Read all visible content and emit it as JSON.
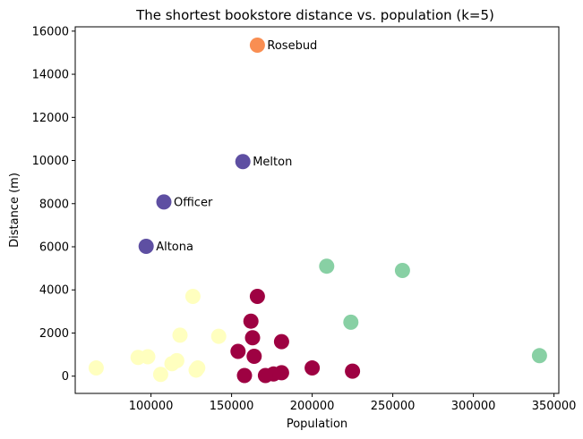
{
  "chart_data": {
    "type": "scatter",
    "title": "The shortest bookstore distance vs. population (k=5)",
    "xlabel": "Population",
    "ylabel": "Distance (m)",
    "xlim": [
      53000,
      353000
    ],
    "ylim": [
      -800,
      16200
    ],
    "xticks": [
      100000,
      150000,
      200000,
      250000,
      300000,
      350000
    ],
    "yticks": [
      0,
      2000,
      4000,
      6000,
      8000,
      10000,
      12000,
      14000,
      16000
    ],
    "grid": false,
    "legend": "none",
    "colormap": "Spectral",
    "cluster_colors": {
      "0": "#9e0142",
      "1": "#f98e52",
      "2": "#ffffbf",
      "3": "#88d0a4",
      "4": "#5e4fa2"
    },
    "points": [
      {
        "x": 166000,
        "y": 15350,
        "cluster": 1,
        "label": "Rosebud"
      },
      {
        "x": 157000,
        "y": 9950,
        "cluster": 4,
        "label": "Melton"
      },
      {
        "x": 108000,
        "y": 8080,
        "cluster": 4,
        "label": "Officer"
      },
      {
        "x": 97000,
        "y": 6020,
        "cluster": 4,
        "label": "Altona"
      },
      {
        "x": 209000,
        "y": 5100,
        "cluster": 3
      },
      {
        "x": 256000,
        "y": 4900,
        "cluster": 3
      },
      {
        "x": 224000,
        "y": 2500,
        "cluster": 3
      },
      {
        "x": 341000,
        "y": 950,
        "cluster": 3
      },
      {
        "x": 126000,
        "y": 3700,
        "cluster": 2
      },
      {
        "x": 118000,
        "y": 1900,
        "cluster": 2
      },
      {
        "x": 142000,
        "y": 1850,
        "cluster": 2
      },
      {
        "x": 92000,
        "y": 870,
        "cluster": 2
      },
      {
        "x": 98000,
        "y": 900,
        "cluster": 2
      },
      {
        "x": 116000,
        "y": 720,
        "cluster": 2
      },
      {
        "x": 113000,
        "y": 580,
        "cluster": 2
      },
      {
        "x": 66000,
        "y": 380,
        "cluster": 2
      },
      {
        "x": 129000,
        "y": 380,
        "cluster": 2
      },
      {
        "x": 128000,
        "y": 280,
        "cluster": 2
      },
      {
        "x": 106000,
        "y": 80,
        "cluster": 2
      },
      {
        "x": 166000,
        "y": 3700,
        "cluster": 0
      },
      {
        "x": 162000,
        "y": 2550,
        "cluster": 0
      },
      {
        "x": 163000,
        "y": 1780,
        "cluster": 0
      },
      {
        "x": 181000,
        "y": 1600,
        "cluster": 0
      },
      {
        "x": 154000,
        "y": 1150,
        "cluster": 0
      },
      {
        "x": 164000,
        "y": 920,
        "cluster": 0
      },
      {
        "x": 200000,
        "y": 380,
        "cluster": 0
      },
      {
        "x": 225000,
        "y": 230,
        "cluster": 0
      },
      {
        "x": 181000,
        "y": 160,
        "cluster": 0
      },
      {
        "x": 176000,
        "y": 100,
        "cluster": 0
      },
      {
        "x": 171000,
        "y": 30,
        "cluster": 0
      },
      {
        "x": 158000,
        "y": 30,
        "cluster": 0
      }
    ]
  }
}
